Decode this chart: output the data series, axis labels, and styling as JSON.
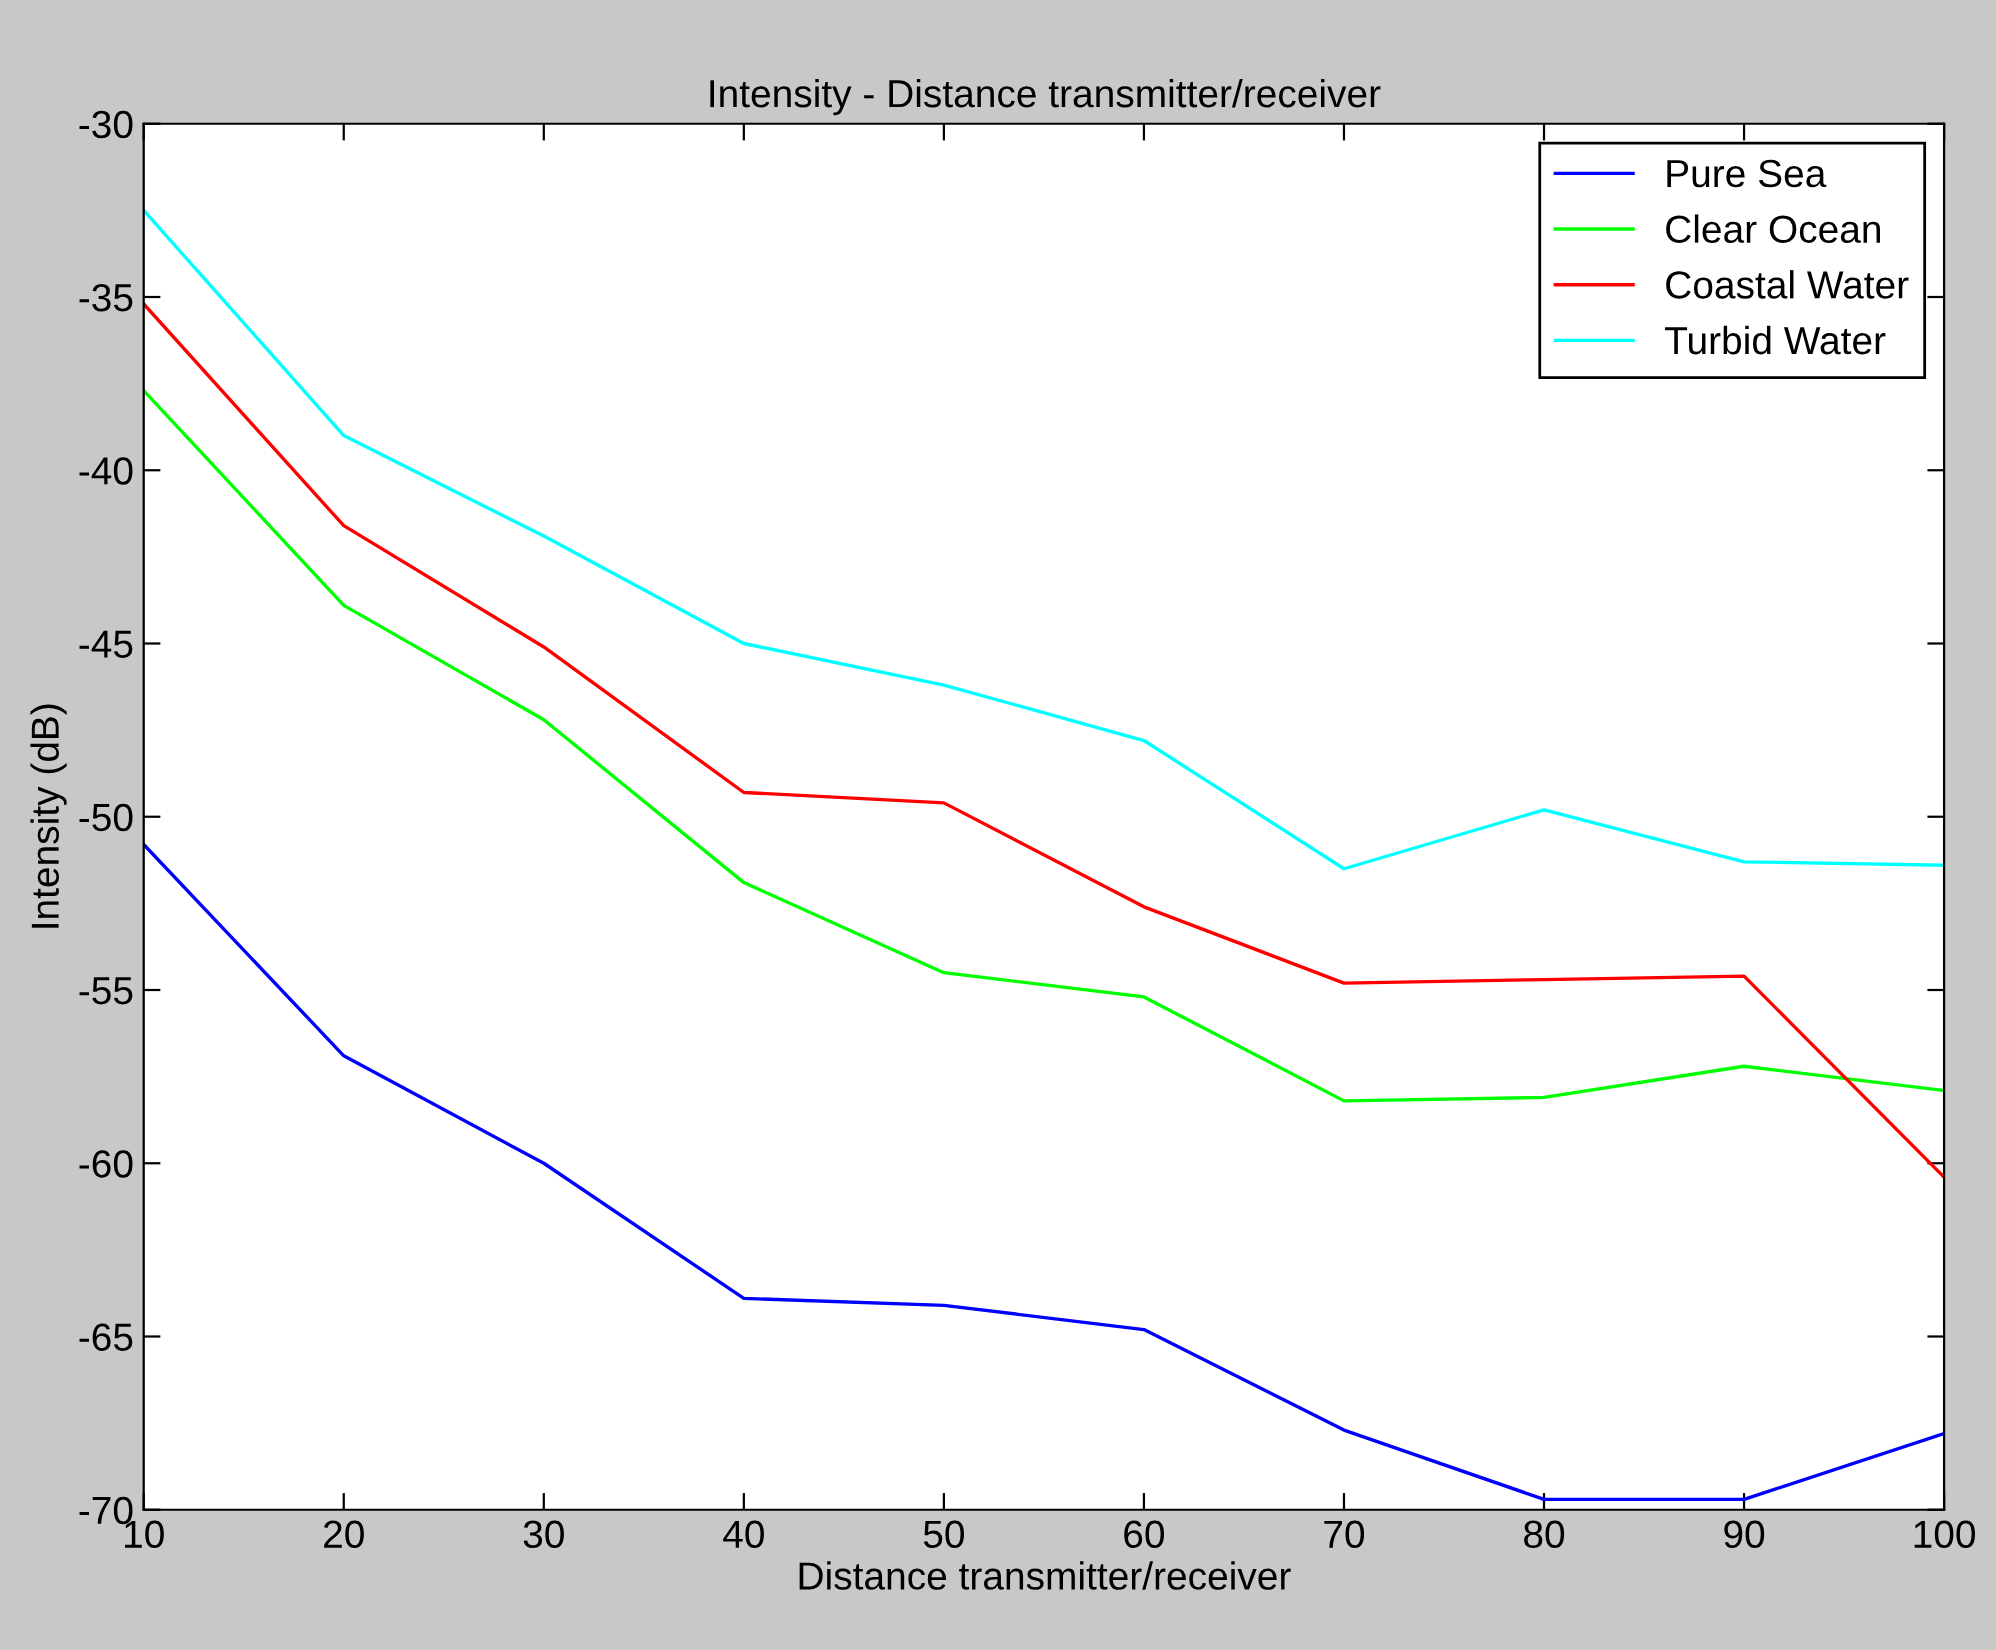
{
  "chart_data": {
    "type": "line",
    "title": "Intensity - Distance transmitter/receiver",
    "xlabel": "Distance transmitter/receiver",
    "ylabel": "Intensity (dB)",
    "x": [
      10,
      20,
      30,
      40,
      50,
      60,
      70,
      80,
      90,
      100
    ],
    "series": [
      {
        "name": "Pure Sea",
        "color": "#0000ff",
        "values": [
          -50.8,
          -56.9,
          -60,
          -63.9,
          -64.1,
          -64.8,
          -67.7,
          -69.7,
          -69.7,
          -67.8
        ]
      },
      {
        "name": "Clear Ocean",
        "color": "#00ff00",
        "values": [
          -37.7,
          -43.9,
          -47.2,
          -51.9,
          -54.5,
          -55.2,
          -58.2,
          -58.1,
          -57.2,
          -57.9
        ]
      },
      {
        "name": "Coastal Water",
        "color": "#ff0000",
        "values": [
          -35.2,
          -41.6,
          -45.1,
          -49.3,
          -49.6,
          -52.6,
          -54.8,
          -54.7,
          -54.6,
          -60.4
        ]
      },
      {
        "name": "Turbid Water",
        "color": "#00ffff",
        "values": [
          -32.5,
          -39,
          -41.9,
          -45,
          -46.2,
          -47.8,
          -51.5,
          -49.8,
          -51.3,
          -51.4
        ]
      }
    ],
    "xlim": [
      10,
      100
    ],
    "xticks": [
      10,
      20,
      30,
      40,
      50,
      60,
      70,
      80,
      90,
      100
    ],
    "ylim": [
      -70,
      -30
    ],
    "yticks": [
      -70,
      -65,
      -60,
      -55,
      -50,
      -45,
      -40,
      -35,
      -30
    ],
    "legend": "top right",
    "grid": false,
    "marker": "none",
    "line_style": "solid"
  }
}
